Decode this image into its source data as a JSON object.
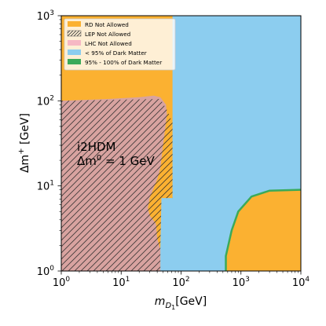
{
  "chart_data": {
    "type": "area",
    "x_scale": "log",
    "y_scale": "log",
    "xlim": [
      1,
      10000
    ],
    "ylim": [
      1,
      1000
    ],
    "x_ticks": [
      {
        "value": 1,
        "base": "10",
        "exp": "0"
      },
      {
        "value": 10,
        "base": "10",
        "exp": "1"
      },
      {
        "value": 100,
        "base": "10",
        "exp": "2"
      },
      {
        "value": 1000,
        "base": "10",
        "exp": "3"
      },
      {
        "value": 10000,
        "base": "10",
        "exp": "4"
      }
    ],
    "y_ticks": [
      {
        "value": 1,
        "base": "10",
        "exp": "0"
      },
      {
        "value": 10,
        "base": "10",
        "exp": "1"
      },
      {
        "value": 100,
        "base": "10",
        "exp": "2"
      },
      {
        "value": 1000,
        "base": "10",
        "exp": "3"
      }
    ],
    "xlabel": {
      "main": "m",
      "sub": "D",
      "subsub": "1",
      "unit": "[GeV]"
    },
    "ylabel": {
      "main": "Δm",
      "sup": "+",
      "unit": " [GeV]"
    },
    "annotation": {
      "line1": "i2HDM",
      "line2_main": "Δm",
      "line2_sup": "0",
      "line2_rest": " = 1 GeV"
    },
    "colors": {
      "rd": "#fbb131",
      "lep_hatch": "#2b2b2b",
      "lhc": "#f6b8c4",
      "dm_low": "#8ccdef",
      "dm_ok": "#3aaa5a",
      "lhc_overlap": "#d6a2a6"
    },
    "legend": {
      "position": "upper-left",
      "items": [
        {
          "label": "RD Not Allowed",
          "style": "rd"
        },
        {
          "label": "LEP Not Allowed",
          "style": "lep"
        },
        {
          "label": "LHC Not Allowed",
          "style": "lhc"
        },
        {
          "label": "< 95% of Dark Matter",
          "style": "dm_low"
        },
        {
          "label": "95% - 100% of Dark Matter",
          "style": "dm_ok"
        }
      ]
    },
    "regions": {
      "rd": [
        [
          1,
          1
        ],
        [
          10000,
          1
        ],
        [
          10000,
          1000
        ],
        [
          1,
          1000
        ]
      ],
      "dm_low": [
        [
          72,
          1000
        ],
        [
          10000,
          1000
        ],
        [
          10000,
          9
        ],
        [
          3000,
          8.8
        ],
        [
          1500,
          7.5
        ],
        [
          900,
          5
        ],
        [
          700,
          3
        ],
        [
          560,
          1.5
        ],
        [
          560,
          1
        ],
        [
          45,
          1
        ],
        [
          45,
          1.8
        ],
        [
          47,
          7.2
        ],
        [
          72,
          7.2
        ]
      ],
      "dm_ok_curve": [
        [
          560,
          1
        ],
        [
          560,
          1.5
        ],
        [
          700,
          3
        ],
        [
          900,
          5
        ],
        [
          1500,
          7.5
        ],
        [
          3000,
          8.8
        ],
        [
          10000,
          9
        ]
      ],
      "lhc": [
        [
          1,
          1
        ],
        [
          45,
          1
        ],
        [
          45,
          1.8
        ],
        [
          40,
          2.4
        ],
        [
          38,
          3.6
        ],
        [
          30,
          4.5
        ],
        [
          28,
          5.5
        ],
        [
          30,
          7.2
        ],
        [
          35,
          9.5
        ],
        [
          40,
          12
        ],
        [
          45,
          16
        ],
        [
          50,
          30
        ],
        [
          55,
          50
        ],
        [
          58,
          70
        ],
        [
          56,
          90
        ],
        [
          45,
          110
        ],
        [
          35,
          115
        ],
        [
          20,
          110
        ],
        [
          6,
          105
        ],
        [
          1,
          100
        ]
      ],
      "lep": [
        [
          1,
          1
        ],
        [
          45,
          1
        ],
        [
          45,
          1.8
        ],
        [
          47,
          7.2
        ],
        [
          72,
          7.2
        ],
        [
          72,
          55
        ],
        [
          60,
          75
        ],
        [
          45,
          105
        ],
        [
          1,
          100
        ]
      ]
    }
  }
}
